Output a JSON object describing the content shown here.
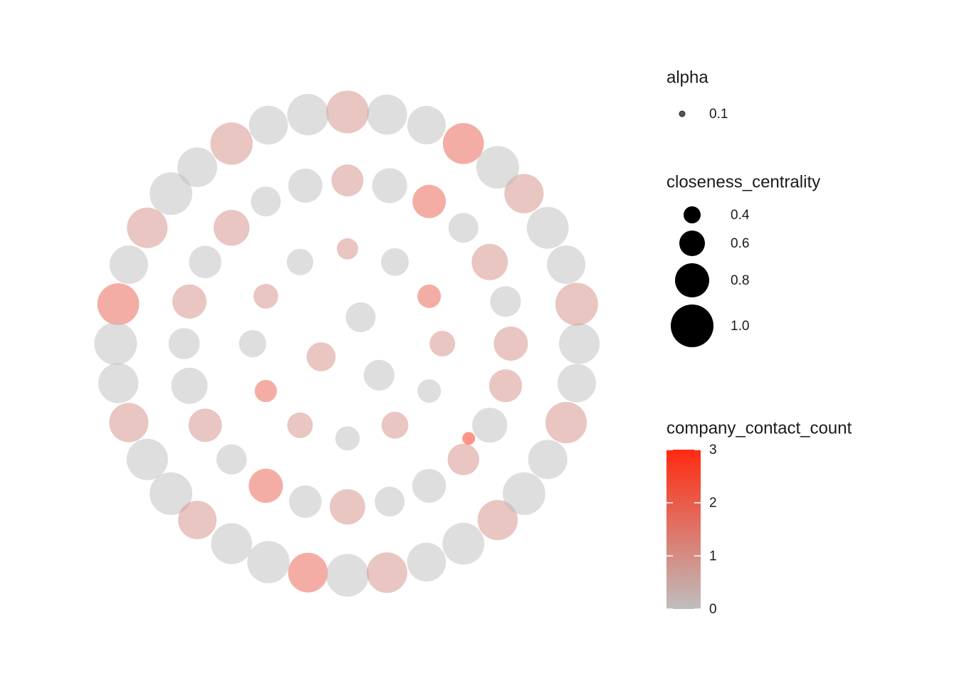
{
  "chart_data": {
    "type": "network",
    "alpha_legend": {
      "title": "alpha",
      "values": [
        0.1
      ]
    },
    "size_legend": {
      "title": "closeness_centrality",
      "breaks": [
        0.4,
        0.6,
        0.8,
        {
          "value": 1,
          "label": "1.0"
        }
      ]
    },
    "color_legend": {
      "title": "company_contact_count",
      "limits": [
        0,
        3
      ],
      "ticks": [
        0,
        1,
        2,
        3
      ],
      "low_color": "#bebebe",
      "high_color": "#ff2a10"
    },
    "node_color": "#bebebe",
    "nodes": {
      "x": [
        0.88,
        0.87,
        0.83,
        0.76,
        0.67,
        0.57,
        0.44,
        0.3,
        0.15,
        0,
        -0.15,
        -0.3,
        -0.44,
        -0.57,
        -0.67,
        -0.76,
        -0.83,
        -0.87,
        -0.88,
        -0.87,
        -0.83,
        -0.76,
        -0.67,
        -0.57,
        -0.44,
        -0.3,
        -0.15,
        0,
        0.15,
        0.3,
        0.44,
        0.57,
        0.67,
        0.76,
        0.83,
        0.87,
        0.62,
        0.6,
        0.54,
        0.44,
        0.31,
        0.16,
        0,
        -0.16,
        -0.31,
        -0.44,
        -0.54,
        -0.6,
        -0.62,
        -0.6,
        -0.54,
        -0.44,
        -0.31,
        -0.16,
        0,
        0.16,
        0.31,
        0.44,
        0.54,
        0.6,
        0.36,
        0.31,
        0.18,
        0,
        -0.18,
        -0.31,
        -0.36,
        -0.31,
        -0.18,
        0,
        0.18,
        0.31,
        0.05,
        -0.1,
        0.12,
        0.46
      ],
      "y": [
        0,
        0.15,
        0.3,
        0.44,
        0.57,
        0.67,
        0.76,
        0.83,
        0.87,
        0.88,
        0.87,
        0.83,
        0.76,
        0.67,
        0.57,
        0.44,
        0.3,
        0.15,
        0,
        -0.15,
        -0.3,
        -0.44,
        -0.57,
        -0.67,
        -0.76,
        -0.83,
        -0.87,
        -0.88,
        -0.87,
        -0.83,
        -0.76,
        -0.67,
        -0.57,
        -0.44,
        -0.3,
        -0.15,
        0,
        0.16,
        0.31,
        0.44,
        0.54,
        0.6,
        0.62,
        0.6,
        0.54,
        0.44,
        0.31,
        0.16,
        0,
        -0.16,
        -0.31,
        -0.44,
        -0.54,
        -0.6,
        -0.62,
        -0.6,
        -0.54,
        -0.44,
        -0.31,
        -0.16,
        0,
        0.18,
        0.31,
        0.36,
        0.31,
        0.18,
        0,
        -0.18,
        -0.31,
        -0.36,
        -0.31,
        -0.18,
        0.1,
        -0.05,
        -0.12,
        -0.36
      ],
      "closeness_centrality": [
        0.95,
        1,
        0.9,
        0.98,
        0.92,
        1,
        0.96,
        0.9,
        0.94,
        1,
        0.97,
        0.91,
        0.99,
        0.93,
        1,
        0.95,
        0.9,
        0.98,
        1,
        0.94,
        0.92,
        0.97,
        1,
        0.9,
        0.96,
        0.99,
        0.93,
        1,
        0.95,
        0.91,
        0.98,
        0.94,
        1,
        0.92,
        0.97,
        0.9,
        0.8,
        0.72,
        0.85,
        0.7,
        0.78,
        0.82,
        0.75,
        0.8,
        0.7,
        0.84,
        0.76,
        0.8,
        0.73,
        0.85,
        0.78,
        0.71,
        0.8,
        0.76,
        0.83,
        0.7,
        0.79,
        0.74,
        0.82,
        0.77,
        0.6,
        0.55,
        0.65,
        0.5,
        0.62,
        0.58,
        0.64,
        0.52,
        0.6,
        0.57,
        0.63,
        0.55,
        0.7,
        0.68,
        0.72,
        0.3
      ],
      "company_contact_count": [
        0,
        1,
        0,
        0,
        1,
        0,
        2,
        0,
        0,
        1,
        0,
        0,
        1,
        0,
        0,
        1,
        0,
        2,
        0,
        0,
        1,
        0,
        0,
        1,
        0,
        0,
        2,
        0,
        1,
        0,
        0,
        1,
        0,
        0,
        1,
        0,
        1,
        0,
        1,
        0,
        2,
        0,
        1,
        0,
        0,
        1,
        0,
        1,
        0,
        0,
        1,
        0,
        2,
        0,
        1,
        0,
        0,
        1,
        0,
        1,
        1,
        2,
        0,
        1,
        0,
        1,
        0,
        2,
        1,
        0,
        1,
        0,
        0,
        1,
        0,
        3
      ]
    }
  }
}
